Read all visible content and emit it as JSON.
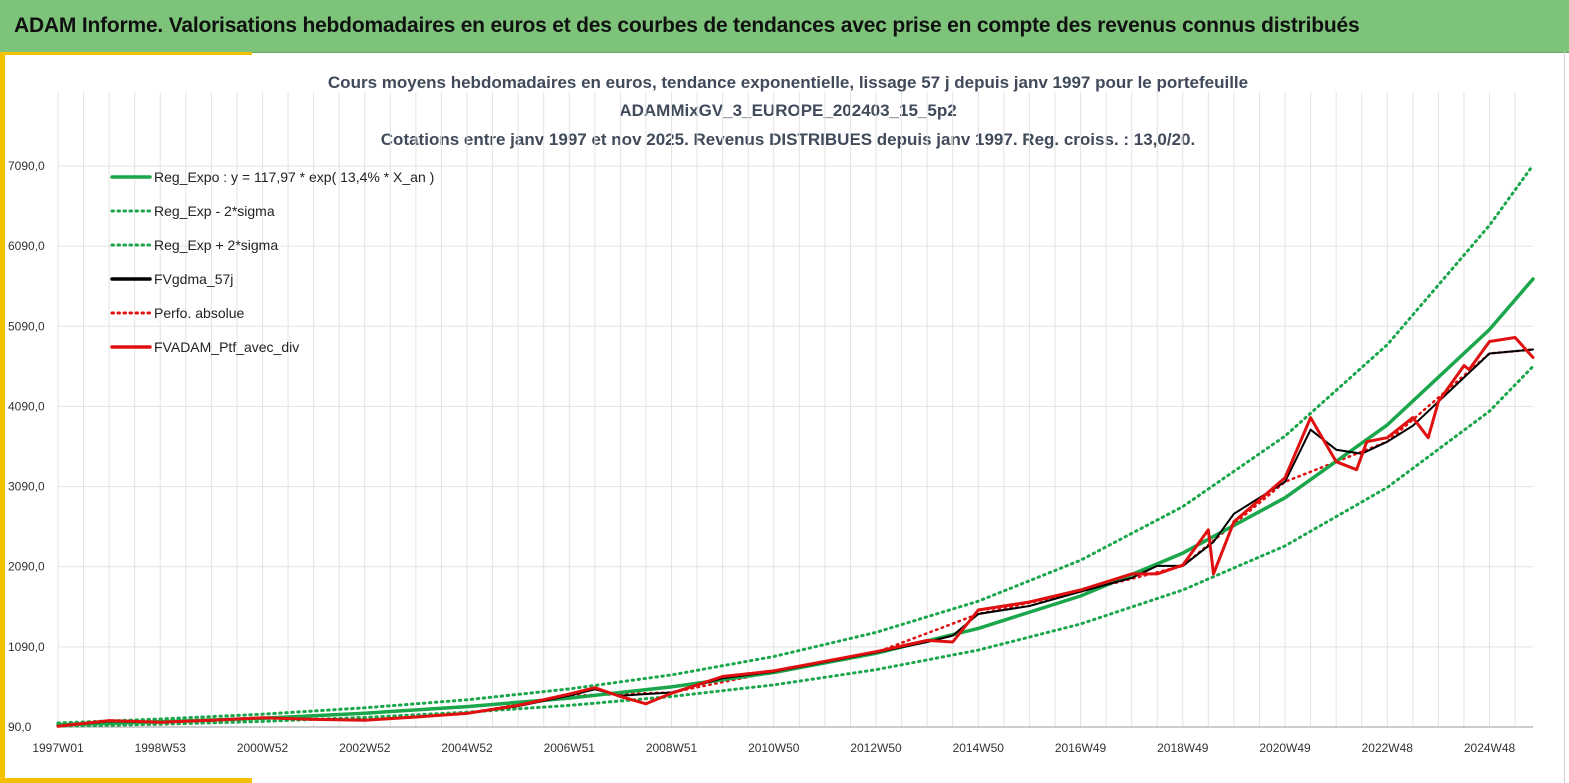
{
  "header": {
    "title": "ADAM Informe. Valorisations hebdomadaires en euros et des courbes de tendances avec prise en compte des revenus connus distribués"
  },
  "colors": {
    "banner": "#7dc47a",
    "accent": "#f2c200",
    "trend": "#1aa64a",
    "black_series": "#000000",
    "red_series": "#e01010"
  },
  "chart_data": {
    "type": "line",
    "title_lines": [
      "Cours moyens hebdomadaires  en euros, tendance exponentielle, lissage 57 j depuis janv 1997 pour le portefeuille",
      "ADAMMixGV_3_EUROPE_202403_15_5p2",
      "Cotations  entre janv 1997 et nov 2025. Revenus DISTRIBUES depuis janv 1997. Reg. croiss. : 13,0/20."
    ],
    "xlabel": "",
    "ylabel": "",
    "xlim": [
      1997.0,
      2025.85
    ],
    "ylim": [
      90,
      7090
    ],
    "y_ticks": [
      90,
      1090,
      2090,
      3090,
      4090,
      5090,
      6090,
      7090
    ],
    "y_tick_labels": [
      "90,0",
      "1090,0",
      "2090,0",
      "3090,0",
      "4090,0",
      "5090,0",
      "6090,0",
      "7090,0"
    ],
    "x_ticks": [
      1997.0,
      1999.0,
      2001.0,
      2003.0,
      2005.0,
      2007.0,
      2009.0,
      2011.0,
      2013.0,
      2015.0,
      2017.0,
      2019.0,
      2021.0,
      2023.0,
      2025.0
    ],
    "x_tick_labels": [
      "1997W01",
      "1998W53",
      "2000W52",
      "2002W52",
      "2004W52",
      "2006W51",
      "2008W51",
      "2010W50",
      "2012W50",
      "2014W50",
      "2016W49",
      "2018W49",
      "2020W49",
      "2022W48",
      "2024W48"
    ],
    "grid": true,
    "legend_position": "top-left",
    "legend": [
      {
        "label": "Reg_Expo : y = 117,97 * exp( 13,4% *  X_an )",
        "color": "#1aa64a",
        "style": "solid"
      },
      {
        "label": "Reg_Exp - 2*sigma",
        "color": "#1aa64a",
        "style": "dotted"
      },
      {
        "label": "Reg_Exp + 2*sigma",
        "color": "#1aa64a",
        "style": "dotted"
      },
      {
        "label": "FVgdma_57j",
        "color": "#000000",
        "style": "solid"
      },
      {
        "label": "Perfo. absolue",
        "color": "#e01010",
        "style": "dotted"
      },
      {
        "label": "FVADAM_Ptf_avec_div",
        "color": "#e01010",
        "style": "solid"
      }
    ],
    "series": [
      {
        "name": "Reg_Expo : y = 117,97 * exp( 13,4% *  X_an )",
        "color": "#1aa64a",
        "style": "solid",
        "x": [
          1997.0,
          1999.0,
          2001.0,
          2003.0,
          2005.0,
          2007.0,
          2009.0,
          2011.0,
          2013.0,
          2015.0,
          2017.0,
          2019.0,
          2021.0,
          2023.0,
          2025.0,
          2025.85
        ],
        "y": [
          118,
          155,
          200,
          262,
          345,
          450,
          590,
          770,
          1010,
          1320,
          1725,
          2260,
          2950,
          3860,
          5050,
          5680
        ]
      },
      {
        "name": "Reg_Exp - 2*sigma",
        "color": "#1aa64a",
        "style": "dotted",
        "x": [
          1997.0,
          1999.0,
          2001.0,
          2003.0,
          2005.0,
          2007.0,
          2009.0,
          2011.0,
          2013.0,
          2015.0,
          2017.0,
          2019.0,
          2021.0,
          2023.0,
          2025.0,
          2025.85
        ],
        "y": [
          100,
          125,
          160,
          210,
          275,
          360,
          470,
          615,
          805,
          1050,
          1375,
          1800,
          2350,
          3080,
          4030,
          4590
        ]
      },
      {
        "name": "Reg_Exp + 2*sigma",
        "color": "#1aa64a",
        "style": "dotted",
        "x": [
          1997.0,
          1999.0,
          2001.0,
          2003.0,
          2005.0,
          2007.0,
          2009.0,
          2011.0,
          2013.0,
          2015.0,
          2017.0,
          2019.0,
          2021.0,
          2023.0,
          2025.0,
          2025.85
        ],
        "y": [
          140,
          190,
          250,
          330,
          430,
          565,
          740,
          970,
          1270,
          1660,
          2170,
          2840,
          3720,
          4860,
          6350,
          7100
        ]
      },
      {
        "name": "FVgdma_57j",
        "color": "#000000",
        "style": "solid",
        "x": [
          1997.0,
          1998.0,
          1999.0,
          2000.0,
          2001.0,
          2002.0,
          2003.0,
          2004.0,
          2005.0,
          2006.0,
          2007.0,
          2007.5,
          2008.0,
          2009.0,
          2010.0,
          2011.0,
          2012.0,
          2013.0,
          2014.0,
          2014.5,
          2015.0,
          2016.0,
          2017.0,
          2018.0,
          2018.5,
          2019.0,
          2019.6,
          2020.0,
          2021.0,
          2021.5,
          2022.0,
          2022.5,
          2023.0,
          2023.5,
          2024.0,
          2025.0,
          2025.85
        ],
        "y": [
          100,
          160,
          150,
          170,
          200,
          190,
          180,
          210,
          260,
          350,
          480,
          560,
          480,
          520,
          700,
          780,
          900,
          1020,
          1150,
          1230,
          1500,
          1600,
          1780,
          1950,
          2100,
          2100,
          2400,
          2750,
          3150,
          3800,
          3550,
          3500,
          3650,
          3850,
          4150,
          4750,
          4800
        ]
      },
      {
        "name": "Perfo. absolue",
        "color": "#e01010",
        "style": "dotted",
        "x": [
          1997.0,
          1999.0,
          2001.0,
          2003.0,
          2005.0,
          2007.0,
          2009.0,
          2011.0,
          2013.0,
          2015.0,
          2017.0,
          2019.0,
          2021.0,
          2023.0,
          2025.0,
          2025.85
        ],
        "y": [
          100,
          150,
          200,
          180,
          260,
          480,
          520,
          780,
          1020,
          1500,
          1780,
          2100,
          3150,
          3650,
          4750,
          4800
        ]
      },
      {
        "name": "FVADAM_Ptf_avec_div",
        "color": "#e01010",
        "style": "solid",
        "x": [
          1997.0,
          1998.0,
          1999.0,
          2000.0,
          2001.0,
          2002.0,
          2003.0,
          2004.0,
          2005.0,
          2006.0,
          2007.0,
          2007.5,
          2008.0,
          2008.5,
          2009.0,
          2010.0,
          2011.0,
          2012.0,
          2013.0,
          2014.0,
          2014.5,
          2015.0,
          2016.0,
          2017.0,
          2018.0,
          2018.5,
          2019.0,
          2019.5,
          2019.6,
          2020.0,
          2021.0,
          2021.5,
          2022.0,
          2022.4,
          2022.6,
          2023.0,
          2023.5,
          2023.8,
          2024.0,
          2024.5,
          2024.6,
          2025.0,
          2025.5,
          2025.85
        ],
        "y": [
          100,
          170,
          150,
          175,
          205,
          185,
          175,
          215,
          260,
          360,
          500,
          580,
          470,
          380,
          510,
          720,
          790,
          910,
          1030,
          1170,
          1150,
          1550,
          1650,
          1800,
          2000,
          2000,
          2110,
          2550,
          2000,
          2650,
          3200,
          3950,
          3400,
          3300,
          3650,
          3700,
          3950,
          3700,
          4150,
          4600,
          4550,
          4900,
          4950,
          4700
        ]
      }
    ]
  }
}
